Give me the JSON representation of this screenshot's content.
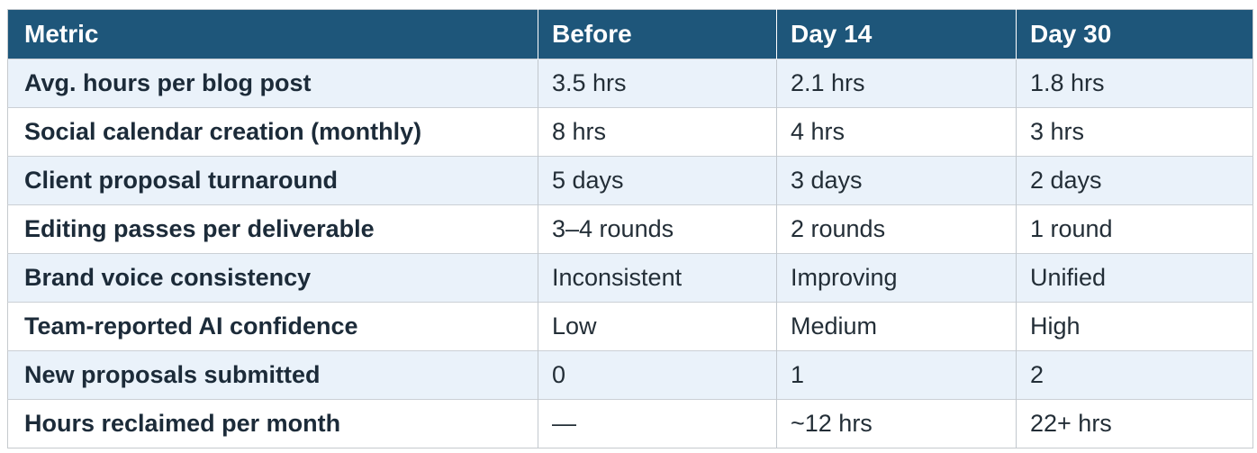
{
  "chart_data": {
    "type": "table",
    "title": "",
    "columns": [
      "Metric",
      "Before",
      "Day 14",
      "Day 30"
    ],
    "rows": [
      [
        "Avg. hours per blog post",
        "3.5 hrs",
        "2.1 hrs",
        "1.8 hrs"
      ],
      [
        "Social calendar creation (monthly)",
        "8 hrs",
        "4 hrs",
        "3 hrs"
      ],
      [
        "Client proposal turnaround",
        "5 days",
        "3 days",
        "2 days"
      ],
      [
        "Editing passes per deliverable",
        "3–4 rounds",
        "2 rounds",
        "1 round"
      ],
      [
        "Brand voice consistency",
        "Inconsistent",
        "Improving",
        "Unified"
      ],
      [
        "Team-reported AI confidence",
        "Low",
        "Medium",
        "High"
      ],
      [
        "New proposals submitted",
        "0",
        "1",
        "2"
      ],
      [
        "Hours reclaimed per month",
        "—",
        "~12 hrs",
        "22+ hrs"
      ]
    ],
    "layout": {
      "striped": true,
      "stripe_pattern": "odd-rows-tinted",
      "header_position": "top"
    }
  },
  "colors": {
    "header_bg": "#1E567A",
    "header_text": "#FFFFFF",
    "row_stripe_bg": "#EAF2FA",
    "row_plain_bg": "#FFFFFF",
    "metric_text": "#1C2B39",
    "value_text": "#232E37",
    "grid_border": "#C9CDD2",
    "header_divider": "#CDE0EB"
  }
}
